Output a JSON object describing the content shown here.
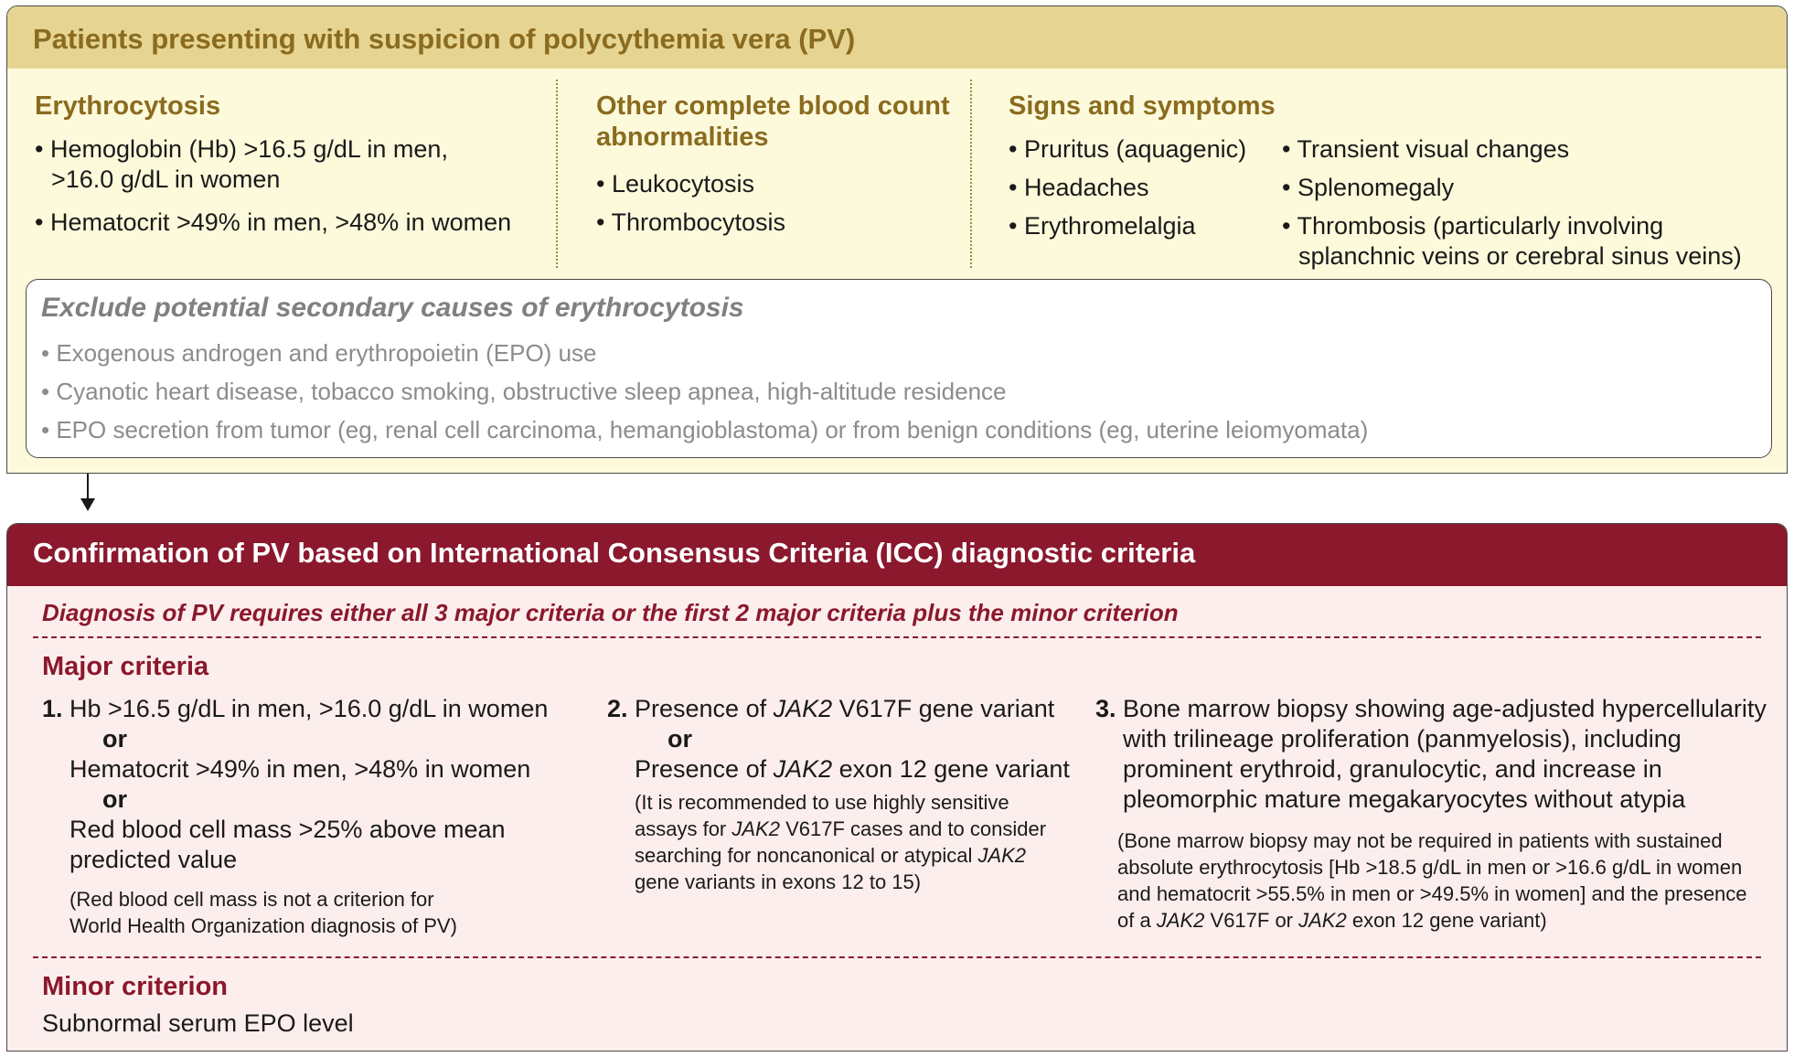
{
  "top": {
    "title": "Patients presenting with suspicion of polycythemia vera (PV)",
    "erythrocytosis": {
      "heading": "Erythrocytosis",
      "items": [
        [
          "• Hemoglobin (Hb) >16.5 g/dL in men,",
          ">16.0 g/dL in women"
        ],
        [
          "• Hematocrit >49% in men, >48% in women"
        ]
      ]
    },
    "cbc": {
      "heading_line1": "Other complete blood count",
      "heading_line2": "abnormalities",
      "items": [
        "• Leukocytosis",
        "• Thrombocytosis"
      ]
    },
    "signs": {
      "heading": "Signs and symptoms",
      "col1": [
        "• Pruritus (aquagenic)",
        "• Headaches",
        "• Erythromelalgia"
      ],
      "col2": [
        "• Transient visual changes",
        "• Splenomegaly",
        "• Thrombosis (particularly involving",
        "splanchnic veins or cerebral sinus veins)"
      ]
    },
    "exclude": {
      "title": "Exclude potential secondary causes of erythrocytosis",
      "items": [
        "• Exogenous androgen and erythropoietin (EPO) use",
        "• Cyanotic heart disease, tobacco smoking, obstructive sleep apnea, high-altitude residence",
        "• EPO secretion from tumor (eg, renal cell carcinoma, hemangioblastoma) or from benign conditions (eg, uterine leiomyomata)"
      ]
    }
  },
  "bottom": {
    "title": "Confirmation of PV based on International Consensus Criteria (ICC) diagnostic criteria",
    "intro": "Diagnosis of PV requires either all 3 major criteria or the first 2 major criteria plus the minor criterion",
    "major_heading": "Major criteria",
    "c1": {
      "num": "1.",
      "l1": "Hb >16.5 g/dL in men, >16.0 g/dL in women",
      "or1": "or",
      "l2": "Hematocrit >49% in men, >48% in women",
      "or2": "or",
      "l3": "Red blood cell mass >25% above mean",
      "l4": "predicted value",
      "note1": "(Red blood cell mass is not a criterion for",
      "note2": "World Health Organization diagnosis of PV)"
    },
    "c2": {
      "num": "2.",
      "l1_pre": "Presence of ",
      "l1_gene": "JAK2",
      "l1_post": " V617F gene variant",
      "or1": "or",
      "l2_pre": "Presence of ",
      "l2_gene": "JAK2",
      "l2_post": " exon 12 gene variant",
      "note1": "(It is recommended to use highly sensitive",
      "note2_pre": "assays for ",
      "note2_gene": "JAK2",
      "note2_post": " V617F cases and to consider",
      "note3_pre": "searching for noncanonical or atypical ",
      "note3_gene": "JAK2",
      "note4": "gene variants in exons 12 to 15)"
    },
    "c3": {
      "num": "3.",
      "l1": "Bone marrow biopsy showing age-adjusted hypercellularity",
      "l2": "with trilineage proliferation (panmyelosis), including",
      "l3": "prominent erythroid, granulocytic, and increase in",
      "l4": "pleomorphic mature megakaryocytes without atypia",
      "note1": "(Bone marrow biopsy may not be required in patients with sustained",
      "note2": "absolute erythrocytosis [Hb >18.5 g/dL in men or >16.6 g/dL in women",
      "note3": "and hematocrit  >55.5% in men or >49.5% in women] and the presence",
      "note4_pre": "of a ",
      "note4_gene1": "JAK2",
      "note4_mid": " V617F or ",
      "note4_gene2": "JAK2",
      "note4_post": " exon 12 gene variant)"
    },
    "minor_heading": "Minor criterion",
    "minor_text": "Subnormal serum EPO level"
  }
}
